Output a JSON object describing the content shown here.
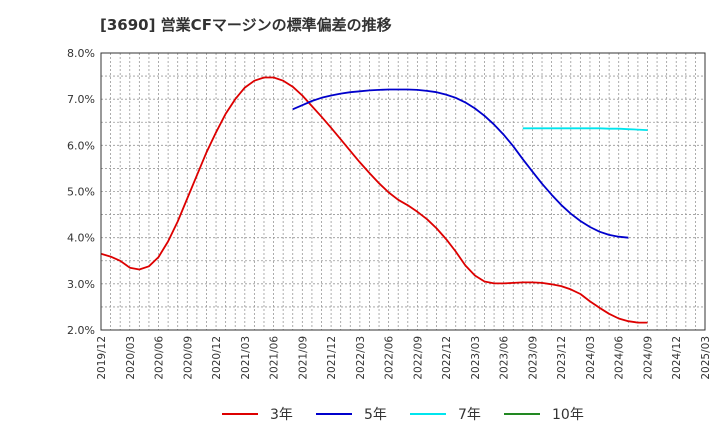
{
  "chart_data": {
    "type": "line",
    "title": "[3690]  営業CFマージンの標準偏差の推移",
    "xlabel": "",
    "ylabel": "",
    "ylim": [
      2.0,
      8.0
    ],
    "yticks": [
      "2.0%",
      "3.0%",
      "4.0%",
      "5.0%",
      "6.0%",
      "7.0%",
      "8.0%"
    ],
    "xticks": [
      "2019/12",
      "2020/03",
      "2020/06",
      "2020/09",
      "2020/12",
      "2021/03",
      "2021/06",
      "2021/09",
      "2021/12",
      "2022/03",
      "2022/06",
      "2022/09",
      "2022/12",
      "2023/03",
      "2023/06",
      "2023/09",
      "2023/12",
      "2024/03",
      "2024/06",
      "2024/09",
      "2024/12",
      "2025/03"
    ],
    "x_start": "2019/12",
    "grid": true,
    "legend_position": "bottom",
    "series": [
      {
        "name": "3年",
        "color": "#dd0000",
        "values": [
          [
            "2019/12",
            3.65
          ],
          [
            "2020/01",
            3.59
          ],
          [
            "2020/02",
            3.5
          ],
          [
            "2020/03",
            3.35
          ],
          [
            "2020/04",
            3.31
          ],
          [
            "2020/05",
            3.38
          ],
          [
            "2020/06",
            3.58
          ],
          [
            "2020/07",
            3.92
          ],
          [
            "2020/08",
            4.35
          ],
          [
            "2020/09",
            4.85
          ],
          [
            "2020/10",
            5.35
          ],
          [
            "2020/11",
            5.85
          ],
          [
            "2020/12",
            6.28
          ],
          [
            "2021/01",
            6.68
          ],
          [
            "2021/02",
            7.0
          ],
          [
            "2021/03",
            7.25
          ],
          [
            "2021/04",
            7.4
          ],
          [
            "2021/05",
            7.47
          ],
          [
            "2021/06",
            7.47
          ],
          [
            "2021/07",
            7.4
          ],
          [
            "2021/08",
            7.27
          ],
          [
            "2021/09",
            7.08
          ],
          [
            "2021/10",
            6.85
          ],
          [
            "2021/11",
            6.62
          ],
          [
            "2021/12",
            6.38
          ],
          [
            "2022/01",
            6.13
          ],
          [
            "2022/02",
            5.88
          ],
          [
            "2022/03",
            5.63
          ],
          [
            "2022/04",
            5.4
          ],
          [
            "2022/05",
            5.18
          ],
          [
            "2022/06",
            4.98
          ],
          [
            "2022/07",
            4.82
          ],
          [
            "2022/08",
            4.7
          ],
          [
            "2022/09",
            4.56
          ],
          [
            "2022/10",
            4.4
          ],
          [
            "2022/11",
            4.2
          ],
          [
            "2022/12",
            3.97
          ],
          [
            "2023/01",
            3.7
          ],
          [
            "2023/02",
            3.4
          ],
          [
            "2023/03",
            3.18
          ],
          [
            "2023/04",
            3.05
          ],
          [
            "2023/05",
            3.01
          ],
          [
            "2023/06",
            3.01
          ],
          [
            "2023/07",
            3.02
          ],
          [
            "2023/08",
            3.03
          ],
          [
            "2023/09",
            3.03
          ],
          [
            "2023/10",
            3.02
          ],
          [
            "2023/11",
            2.99
          ],
          [
            "2023/12",
            2.95
          ],
          [
            "2024/01",
            2.88
          ],
          [
            "2024/02",
            2.78
          ],
          [
            "2024/03",
            2.62
          ],
          [
            "2024/04",
            2.48
          ],
          [
            "2024/05",
            2.35
          ],
          [
            "2024/06",
            2.25
          ],
          [
            "2024/07",
            2.19
          ],
          [
            "2024/08",
            2.16
          ],
          [
            "2024/09",
            2.16
          ]
        ]
      },
      {
        "name": "5年",
        "color": "#0000cc",
        "values": [
          [
            "2021/08",
            6.78
          ],
          [
            "2021/09",
            6.87
          ],
          [
            "2021/10",
            6.96
          ],
          [
            "2021/11",
            7.03
          ],
          [
            "2021/12",
            7.08
          ],
          [
            "2022/01",
            7.12
          ],
          [
            "2022/02",
            7.15
          ],
          [
            "2022/03",
            7.17
          ],
          [
            "2022/04",
            7.19
          ],
          [
            "2022/05",
            7.2
          ],
          [
            "2022/06",
            7.21
          ],
          [
            "2022/07",
            7.21
          ],
          [
            "2022/08",
            7.21
          ],
          [
            "2022/09",
            7.2
          ],
          [
            "2022/10",
            7.18
          ],
          [
            "2022/11",
            7.15
          ],
          [
            "2022/12",
            7.1
          ],
          [
            "2023/01",
            7.03
          ],
          [
            "2023/02",
            6.93
          ],
          [
            "2023/03",
            6.8
          ],
          [
            "2023/04",
            6.64
          ],
          [
            "2023/05",
            6.45
          ],
          [
            "2023/06",
            6.23
          ],
          [
            "2023/07",
            5.98
          ],
          [
            "2023/08",
            5.7
          ],
          [
            "2023/09",
            5.43
          ],
          [
            "2023/10",
            5.17
          ],
          [
            "2023/11",
            4.93
          ],
          [
            "2023/12",
            4.71
          ],
          [
            "2024/01",
            4.52
          ],
          [
            "2024/02",
            4.36
          ],
          [
            "2024/03",
            4.23
          ],
          [
            "2024/04",
            4.13
          ],
          [
            "2024/05",
            4.06
          ],
          [
            "2024/06",
            4.02
          ],
          [
            "2024/07",
            4.0
          ]
        ]
      },
      {
        "name": "7年",
        "color": "#00e5ee",
        "values": [
          [
            "2023/08",
            6.37
          ],
          [
            "2023/09",
            6.37
          ],
          [
            "2023/10",
            6.37
          ],
          [
            "2023/11",
            6.37
          ],
          [
            "2023/12",
            6.37
          ],
          [
            "2024/01",
            6.37
          ],
          [
            "2024/02",
            6.37
          ],
          [
            "2024/03",
            6.37
          ],
          [
            "2024/04",
            6.37
          ],
          [
            "2024/05",
            6.36
          ],
          [
            "2024/06",
            6.36
          ],
          [
            "2024/07",
            6.35
          ],
          [
            "2024/08",
            6.34
          ],
          [
            "2024/09",
            6.33
          ]
        ]
      },
      {
        "name": "10年",
        "color": "#228822",
        "values": []
      }
    ]
  }
}
